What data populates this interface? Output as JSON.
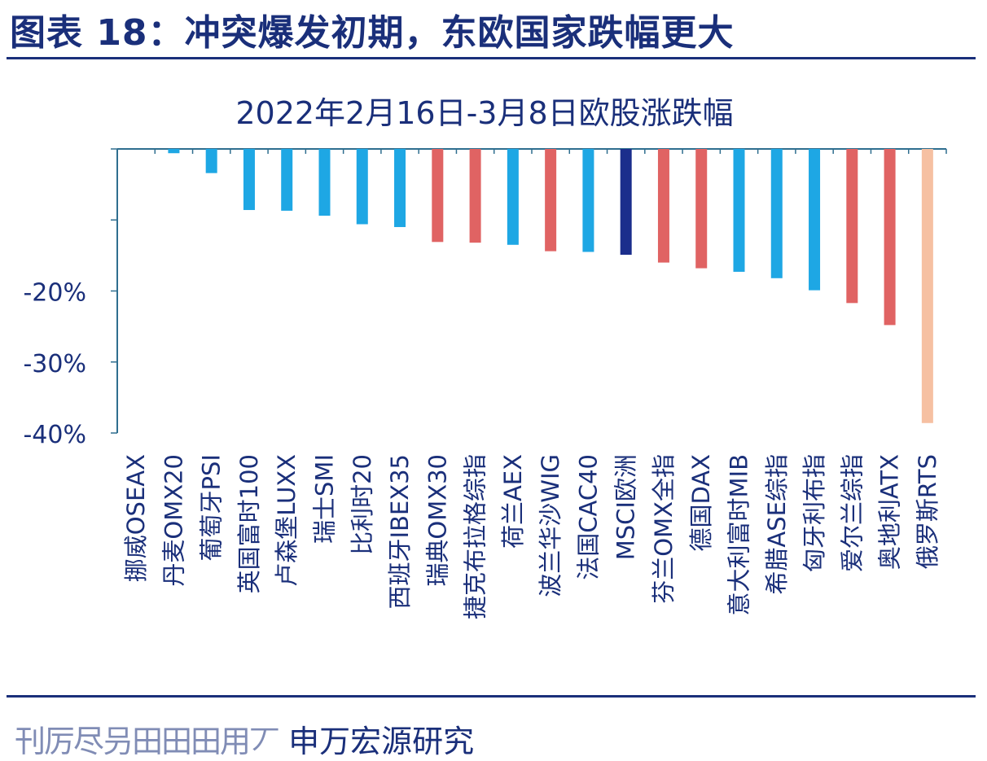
{
  "header": {
    "title": "图表 18：冲突爆发初期，东欧国家跌幅更大"
  },
  "footer": {
    "source": "申万宏源研究",
    "smudged_text": "刊厉尽叧田田田用丆"
  },
  "colors": {
    "title": "#1a2f7a",
    "axis": "#2f6e8f",
    "light_blue": "#1ea7e4",
    "red": "#e06363",
    "dark_blue": "#1b2e8c",
    "peach": "#f6c0a2"
  },
  "chart_data": {
    "type": "bar",
    "title": "2022年2月16日-3月8日欧股涨跌幅",
    "xlabel": "",
    "ylabel": "",
    "ylim": [
      -40,
      0
    ],
    "yticks": [
      {
        "value": 0,
        "label": ""
      },
      {
        "value": -10,
        "label": ""
      },
      {
        "value": -20,
        "label": "-20%"
      },
      {
        "value": -30,
        "label": "-30%"
      },
      {
        "value": -40,
        "label": "-40%"
      }
    ],
    "categories": [
      "挪威OSEAX",
      "丹麦OMX20",
      "葡萄牙PSI",
      "英国富时100",
      "卢森堡LUXX",
      "瑞士SMI",
      "比利时20",
      "西班牙IBEX35",
      "瑞典OMX30",
      "捷克布拉格综指",
      "荷兰AEX",
      "波兰华沙WIG",
      "法国CAC40",
      "MSCI欧洲",
      "芬兰OMX全指",
      "德国DAX",
      "意大利富时MIB",
      "希腊ASE综指",
      "匈牙利布指",
      "爱尔兰综指",
      "奥地利ATX",
      "俄罗斯RTS"
    ],
    "values": [
      0,
      -0.6,
      -3.4,
      -8.6,
      -8.7,
      -9.4,
      -10.6,
      -11.0,
      -13.1,
      -13.2,
      -13.5,
      -14.4,
      -14.5,
      -14.9,
      -16.0,
      -16.8,
      -17.3,
      -18.2,
      -19.9,
      -21.7,
      -24.8,
      -38.6
    ],
    "bar_colors": [
      "light_blue",
      "light_blue",
      "light_blue",
      "light_blue",
      "light_blue",
      "light_blue",
      "light_blue",
      "light_blue",
      "red",
      "red",
      "light_blue",
      "red",
      "light_blue",
      "dark_blue",
      "red",
      "red",
      "light_blue",
      "light_blue",
      "light_blue",
      "red",
      "red",
      "peach"
    ],
    "grid": false,
    "legend": "none"
  }
}
